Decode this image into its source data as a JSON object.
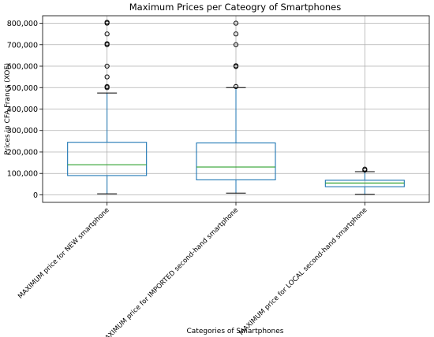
{
  "chart_data": {
    "type": "box",
    "title": "Maximum Prices per Cateogry of Smartphones",
    "xlabel": "Categories of Smartphones",
    "ylabel": "Prices in CFA Francs (XOF)",
    "ylim": [
      -35000,
      835000
    ],
    "yticks": [
      0,
      100000,
      200000,
      300000,
      400000,
      500000,
      600000,
      700000,
      800000
    ],
    "ytick_labels": [
      "0",
      "100,000",
      "200,000",
      "300,000",
      "400,000",
      "500,000",
      "600,000",
      "700,000",
      "800,000"
    ],
    "grid": true,
    "colors": {
      "box": "#1f77b4",
      "median": "#2ca02c",
      "whisker": "#000000",
      "grid": "#b0b0b0"
    },
    "categories": [
      "MAXIMUM price for NEW smartphone",
      "MAXIMUM price for IMPORTED second-hand smartphone",
      "MAXIMUM price for LOCAL second-hand smartphone"
    ],
    "boxes": [
      {
        "whislo": 5000,
        "q1": 90000,
        "med": 140000,
        "q3": 245000,
        "whishi": 475000,
        "fliers": [
          500000,
          505000,
          550000,
          600000,
          700000,
          705000,
          750000,
          800000,
          805000
        ]
      },
      {
        "whislo": 8000,
        "q1": 70000,
        "med": 130000,
        "q3": 242000,
        "whishi": 500000,
        "fliers": [
          505000,
          598000,
          602000,
          700000,
          750000,
          800000
        ]
      },
      {
        "whislo": 2000,
        "q1": 38000,
        "med": 55000,
        "q3": 68000,
        "whishi": 108000,
        "fliers": [
          115000,
          120000
        ]
      }
    ]
  }
}
